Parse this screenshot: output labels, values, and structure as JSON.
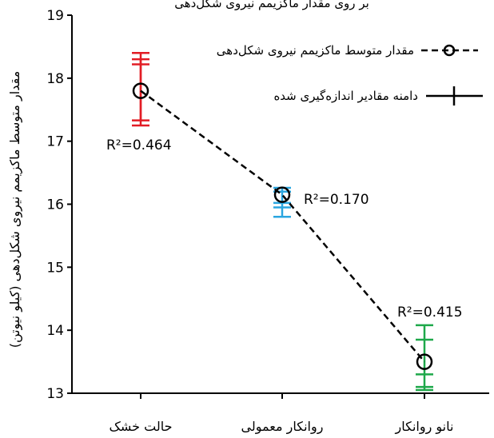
{
  "chart_data": {
    "type": "line",
    "title": "",
    "xlabel": "",
    "ylabel": "مقدار متوسط ماکزیمم نیروی شکل‌دهی (کیلو نیوتن)",
    "ylim": [
      13,
      19
    ],
    "yticks": [
      "13",
      "14",
      "15",
      "16",
      "17",
      "18",
      "19"
    ],
    "categories": [
      "حالت خشک",
      "روانکار معمولی",
      "نانو روانکار"
    ],
    "series": [
      {
        "name": "مقدار متوسط ماکزیمم نیروی شکل‌دهی",
        "values": [
          17.8,
          16.15,
          13.5
        ],
        "marker": "circle",
        "line_style": "dashed",
        "color": "#000000"
      }
    ],
    "ranges": [
      {
        "category": "حالت خشک",
        "color": "#e21d25",
        "whiskers": [
          17.25,
          17.33,
          18.22,
          18.3,
          18.4
        ],
        "lines": [
          [
            17.25,
            18.4
          ],
          [
            17.33,
            18.3
          ]
        ]
      },
      {
        "category": "روانکار معمولی",
        "color": "#2aa6e0",
        "whiskers": [
          15.8,
          15.95,
          16.02,
          16.2,
          16.26
        ],
        "lines": [
          [
            15.8,
            16.26
          ]
        ]
      },
      {
        "category": "نانو روانکار",
        "color": "#1ea84a",
        "whiskers": [
          13.05,
          13.1,
          13.3,
          13.85,
          14.08
        ],
        "lines": [
          [
            13.05,
            14.08
          ]
        ]
      }
    ],
    "annotations": [
      "R²=0.464",
      "R²=0.170",
      "R²=0.415"
    ],
    "legend": {
      "position": "top-right",
      "entries": [
        "مقدار متوسط ماکزیمم نیروی شکل‌دهی",
        "دامنه مقادیر اندازه‌گیری شده"
      ]
    },
    "grid": false
  },
  "top_caption": "بر روی مقدار ماکزیمم نیروی شکل‌دهی"
}
